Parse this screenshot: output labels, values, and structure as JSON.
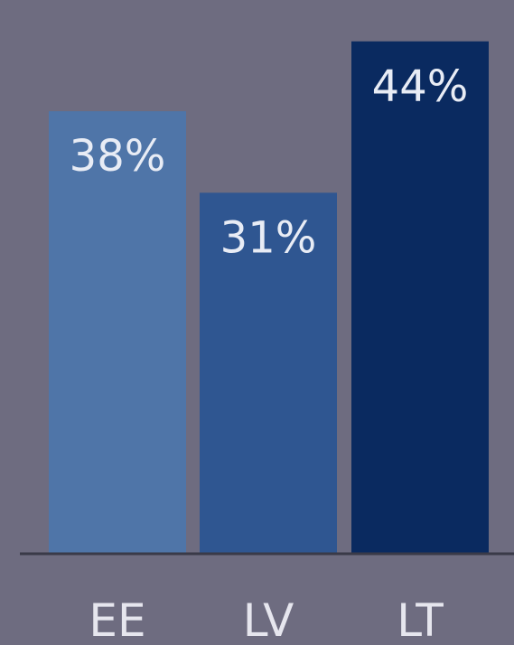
{
  "chart_data": {
    "type": "bar",
    "categories": [
      "EE",
      "LV",
      "LT"
    ],
    "values": [
      38,
      31,
      44
    ],
    "value_labels": [
      "38%",
      "31%",
      "44%"
    ],
    "unit": "%",
    "bar_colors": [
      "#4f75a8",
      "#2f5691",
      "#0a2a60"
    ],
    "background_color": "#6e6c80",
    "axis_color": "#3a3a48",
    "title": "",
    "xlabel": "",
    "ylabel": "",
    "ylim": [
      0,
      46
    ],
    "grid": false,
    "legend": "none"
  }
}
